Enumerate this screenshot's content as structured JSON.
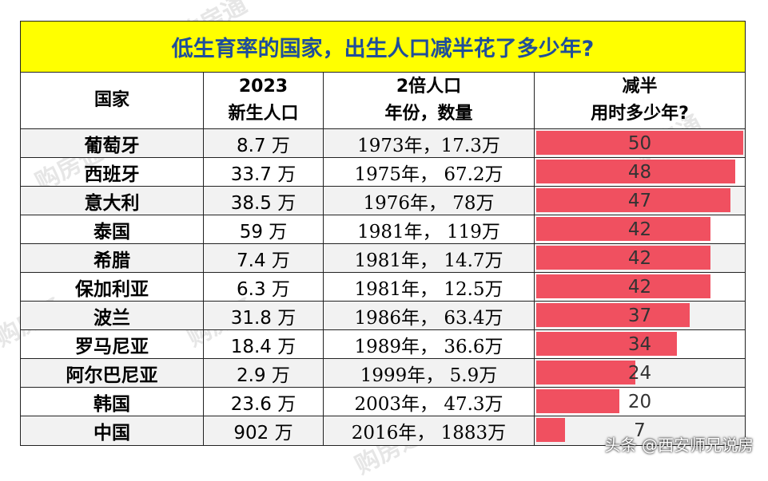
{
  "chart_data": {
    "type": "table",
    "title": "低生育率的国家，出生人口减半花了多少年?",
    "columns": [
      [
        "国家"
      ],
      [
        "2023",
        "新生人口"
      ],
      [
        "2倍人口",
        "年份，数量"
      ],
      [
        "减半",
        "用时多少年?"
      ]
    ],
    "rows": [
      {
        "country": "葡萄牙",
        "births_2023": "8.7 万",
        "year_count": "1973年，17.3万",
        "years": 50
      },
      {
        "country": "西班牙",
        "births_2023": "33.7 万",
        "year_count": "1975年，  67.2万",
        "years": 48
      },
      {
        "country": "意大利",
        "births_2023": "38.5 万",
        "year_count": "1976年，  78万",
        "years": 47
      },
      {
        "country": "泰国",
        "births_2023": "59 万",
        "year_count": "1981年，  119万",
        "years": 42
      },
      {
        "country": "希腊",
        "births_2023": "7.4 万",
        "year_count": "1981年，  14.7万",
        "years": 42
      },
      {
        "country": "保加利亚",
        "births_2023": "6.3 万",
        "year_count": "1981年，  12.5万",
        "years": 42
      },
      {
        "country": "波兰",
        "births_2023": "31.8 万",
        "year_count": "1986年，  63.4万",
        "years": 37
      },
      {
        "country": "罗马尼亚",
        "births_2023": "18.4 万",
        "year_count": "1989年，  36.6万",
        "years": 34
      },
      {
        "country": "阿尔巴尼亚",
        "births_2023": "2.9 万",
        "year_count": "1999年，  5.9万",
        "years": 24
      },
      {
        "country": "韩国",
        "births_2023": "23.6 万",
        "year_count": "2003年，  47.3万",
        "years": 20
      },
      {
        "country": "中国",
        "births_2023": "902 万",
        "year_count": "2016年，  1883万",
        "years": 7
      }
    ],
    "bar_max": 50,
    "bar_color": "#f05060"
  },
  "header_bg": "#ffff00",
  "title_color": "#1f4e9a",
  "watermark": "购房通",
  "credit": "头条 @西安师兄说房"
}
